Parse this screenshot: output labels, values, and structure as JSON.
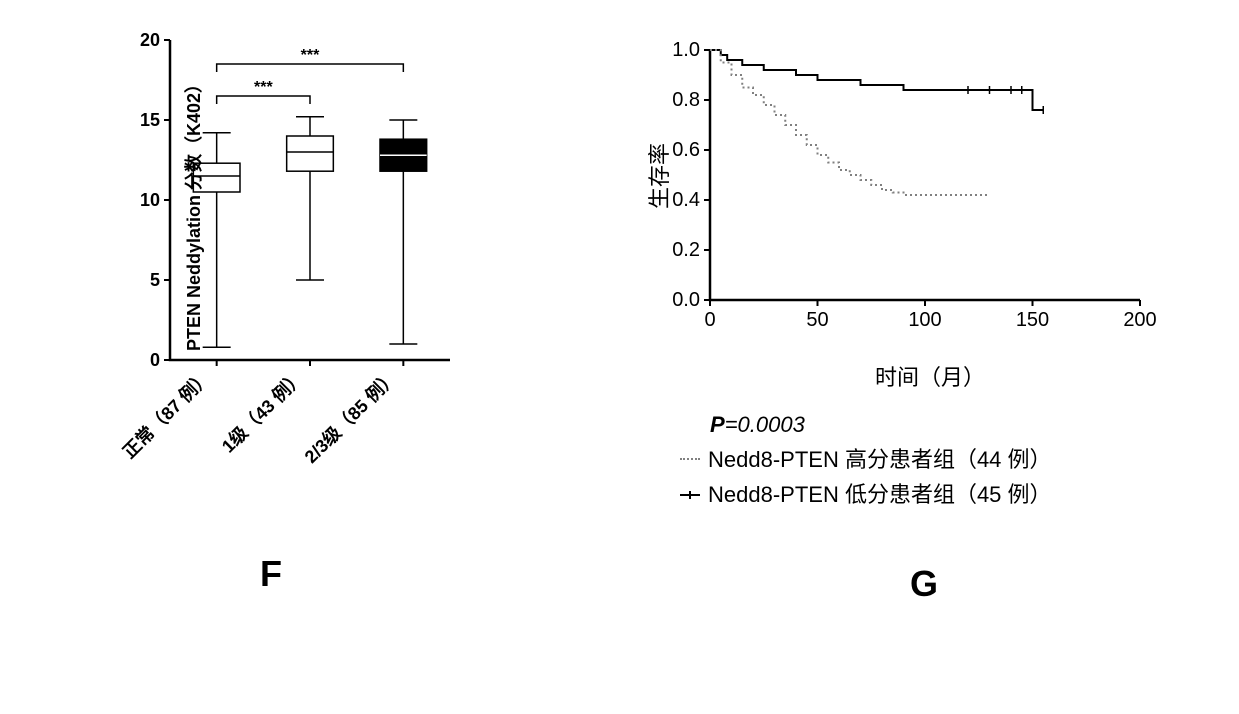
{
  "panelF": {
    "type": "boxplot",
    "yLabel": "PTEN Neddylation 分数（K402）",
    "yTicks": [
      0,
      5,
      10,
      15,
      20
    ],
    "yLim": [
      0,
      20
    ],
    "categories": [
      {
        "label": "正常（87 例）",
        "q1": 10.5,
        "median": 11.5,
        "q3": 12.3,
        "whiskerLow": 0.8,
        "whiskerHigh": 14.2,
        "fill": "#ffffff"
      },
      {
        "label": "1级（43 例）",
        "q1": 11.8,
        "median": 13.0,
        "q3": 14.0,
        "whiskerLow": 5.0,
        "whiskerHigh": 15.2,
        "fill": "#ffffff"
      },
      {
        "label": "2/3级（85 例）",
        "q1": 11.8,
        "median": 12.8,
        "q3": 13.8,
        "whiskerLow": 1.0,
        "whiskerHigh": 15.0,
        "fill": "#000000"
      }
    ],
    "significance": [
      {
        "from": 0,
        "to": 1,
        "label": "***",
        "y": 16.5
      },
      {
        "from": 0,
        "to": 2,
        "label": "***",
        "y": 18.5
      }
    ],
    "axisColor": "#000000",
    "panelLabel": "F"
  },
  "panelG": {
    "type": "survival",
    "yLabel": "生存率",
    "xLabel": "时间（月）",
    "yTicks": [
      0.0,
      0.2,
      0.4,
      0.6,
      0.8,
      1.0
    ],
    "xTicks": [
      0,
      50,
      100,
      150,
      200
    ],
    "yLim": [
      0.0,
      1.0
    ],
    "xLim": [
      0,
      200
    ],
    "pValue": "P=0.0003",
    "series": [
      {
        "name": "low",
        "label": "Nedd8-PTEN 低分患者组（45 例）",
        "style": "solid",
        "color": "#000000",
        "points": [
          [
            0,
            1.0
          ],
          [
            5,
            0.98
          ],
          [
            8,
            0.96
          ],
          [
            15,
            0.94
          ],
          [
            20,
            0.94
          ],
          [
            25,
            0.92
          ],
          [
            30,
            0.92
          ],
          [
            40,
            0.9
          ],
          [
            50,
            0.88
          ],
          [
            60,
            0.88
          ],
          [
            70,
            0.86
          ],
          [
            80,
            0.86
          ],
          [
            90,
            0.84
          ],
          [
            100,
            0.84
          ],
          [
            120,
            0.84
          ],
          [
            140,
            0.84
          ],
          [
            145,
            0.84
          ],
          [
            150,
            0.76
          ],
          [
            155,
            0.76
          ]
        ],
        "censored": [
          [
            120,
            0.84
          ],
          [
            130,
            0.84
          ],
          [
            140,
            0.84
          ],
          [
            145,
            0.84
          ],
          [
            155,
            0.76
          ]
        ]
      },
      {
        "name": "high",
        "label": "Nedd8-PTEN 高分患者组（44 例）",
        "style": "dotted",
        "color": "#808080",
        "points": [
          [
            0,
            1.0
          ],
          [
            5,
            0.95
          ],
          [
            10,
            0.9
          ],
          [
            15,
            0.85
          ],
          [
            20,
            0.82
          ],
          [
            25,
            0.78
          ],
          [
            30,
            0.74
          ],
          [
            35,
            0.7
          ],
          [
            40,
            0.66
          ],
          [
            45,
            0.62
          ],
          [
            50,
            0.58
          ],
          [
            55,
            0.55
          ],
          [
            60,
            0.52
          ],
          [
            65,
            0.5
          ],
          [
            70,
            0.48
          ],
          [
            75,
            0.46
          ],
          [
            80,
            0.44
          ],
          [
            85,
            0.43
          ],
          [
            90,
            0.42
          ],
          [
            130,
            0.42
          ]
        ],
        "censored": []
      }
    ],
    "axisColor": "#000000",
    "panelLabel": "G"
  }
}
